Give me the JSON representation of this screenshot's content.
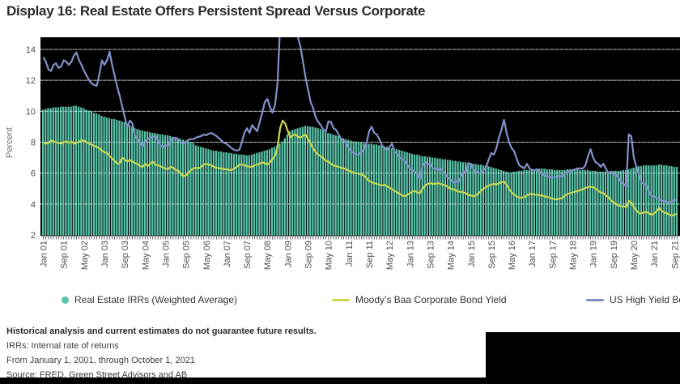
{
  "title": "Display 16: Real Estate Offers Persistent Spread Versus Corporate",
  "footnotes": {
    "line1": "Historical analysis and current estimates do not guarantee future results.",
    "line2": "IRRs: Internal rate of returns",
    "line3": "From January 1, 2001, through October 1, 2021",
    "line4": "Source: FRED, Green Street Advisors and AB"
  },
  "colors": {
    "bars": "#5AC4AB",
    "baa_line": "#CBD84F",
    "hy_line": "#8391C9",
    "plot_background": "#000000",
    "gridline": "#8a8a8a",
    "axis_text": "#4d4e50"
  },
  "chart_data": {
    "type": "bar",
    "subtype": "monthly bars with two overlaid line series",
    "title": "Display 16: Real Estate Offers Persistent Spread Versus Corporate",
    "xlabel": "",
    "ylabel": "Percent",
    "ylim": [
      2,
      14
    ],
    "y_ticks": [
      2,
      4,
      6,
      8,
      10,
      12,
      14
    ],
    "grid": true,
    "legend_position": "bottom",
    "x_unit": "month",
    "x_start": "Jan 2001",
    "x_end": "Oct 2021",
    "x_tick_labels": [
      "Jan 01",
      "Sep 01",
      "May 02",
      "Jan 03",
      "Sep 03",
      "May 04",
      "Jan 05",
      "Sep 05",
      "May 06",
      "Jan 07",
      "Sep 07",
      "May 08",
      "Jan 09",
      "Sep 09",
      "May 10",
      "Jan 11",
      "Sep 11",
      "May 12",
      "Jan 13",
      "Sep 13",
      "May 14",
      "Jan 15",
      "Sep 15",
      "May 16",
      "Jan 17",
      "Sep 17",
      "May 18",
      "Jan 19",
      "Sep 19",
      "May 20",
      "Jan 21",
      "Sep 21"
    ],
    "x_tick_every_n_months": 8,
    "series": [
      {
        "name": "Real Estate IRRs (Weighted Average)",
        "type": "bar",
        "color": "#5AC4AB",
        "values": [
          10.1,
          10.15,
          10.2,
          10.2,
          10.25,
          10.25,
          10.25,
          10.3,
          10.3,
          10.3,
          10.3,
          10.3,
          10.35,
          10.35,
          10.3,
          10.25,
          10.2,
          10.1,
          10.05,
          10.0,
          9.9,
          9.85,
          9.8,
          9.7,
          9.65,
          9.6,
          9.55,
          9.5,
          9.5,
          9.45,
          9.4,
          9.35,
          9.3,
          9.2,
          9.1,
          9.0,
          8.9,
          8.85,
          8.8,
          8.75,
          8.7,
          8.7,
          8.65,
          8.6,
          8.6,
          8.55,
          8.5,
          8.5,
          8.45,
          8.45,
          8.4,
          8.35,
          8.3,
          8.25,
          8.2,
          8.15,
          8.1,
          8.05,
          8.0,
          7.95,
          7.8,
          7.75,
          7.7,
          7.65,
          7.6,
          7.55,
          7.5,
          7.45,
          7.45,
          7.4,
          7.4,
          7.35,
          7.35,
          7.3,
          7.3,
          7.25,
          7.25,
          7.2,
          7.2,
          7.2,
          7.15,
          7.15,
          7.2,
          7.25,
          7.3,
          7.35,
          7.4,
          7.45,
          7.5,
          7.55,
          7.65,
          7.7,
          7.8,
          7.9,
          8.05,
          8.25,
          8.5,
          8.7,
          8.8,
          8.85,
          8.9,
          8.95,
          9.0,
          9.05,
          9.05,
          9.0,
          9.0,
          8.95,
          8.9,
          8.85,
          8.8,
          8.7,
          8.6,
          8.55,
          8.5,
          8.45,
          8.4,
          8.3,
          8.25,
          8.2,
          8.15,
          8.1,
          8.05,
          8.05,
          8.0,
          8.0,
          7.95,
          7.95,
          7.9,
          7.9,
          7.85,
          7.85,
          7.8,
          7.8,
          7.75,
          7.7,
          7.65,
          7.6,
          7.6,
          7.55,
          7.5,
          7.45,
          7.4,
          7.35,
          7.3,
          7.25,
          7.2,
          7.2,
          7.15,
          7.1,
          7.1,
          7.05,
          7.05,
          7.0,
          7.0,
          6.95,
          6.95,
          6.9,
          6.9,
          6.85,
          6.85,
          6.8,
          6.8,
          6.75,
          6.75,
          6.7,
          6.7,
          6.65,
          6.65,
          6.6,
          6.6,
          6.55,
          6.55,
          6.5,
          6.5,
          6.45,
          6.4,
          6.35,
          6.3,
          6.25,
          6.2,
          6.15,
          6.1,
          6.05,
          6.05,
          6.1,
          6.1,
          6.15,
          6.15,
          6.2,
          6.2,
          6.2,
          6.25,
          6.25,
          6.3,
          6.3,
          6.3,
          6.3,
          6.25,
          6.25,
          6.25,
          6.2,
          6.2,
          6.2,
          6.2,
          6.2,
          6.25,
          6.25,
          6.25,
          6.25,
          6.25,
          6.2,
          6.2,
          6.2,
          6.2,
          6.15,
          6.15,
          6.15,
          6.1,
          6.1,
          6.1,
          6.1,
          6.1,
          6.1,
          6.15,
          6.15,
          6.15,
          6.15,
          6.2,
          6.2,
          6.25,
          6.3,
          6.35,
          6.4,
          6.45,
          6.45,
          6.5,
          6.5,
          6.5,
          6.5,
          6.5,
          6.5,
          6.55,
          6.55,
          6.5,
          6.5,
          6.45,
          6.45,
          6.4,
          6.4
        ]
      },
      {
        "name": "Moody’s Baa Corporate Bond Yield",
        "type": "line",
        "color": "#CBD84F",
        "values": [
          7.95,
          7.9,
          7.95,
          8.1,
          8.05,
          8.0,
          7.95,
          7.9,
          8.0,
          8.05,
          7.95,
          8.05,
          7.9,
          7.95,
          8.05,
          8.1,
          8.1,
          8.0,
          7.9,
          7.85,
          7.75,
          7.7,
          7.6,
          7.45,
          7.35,
          7.3,
          7.1,
          6.95,
          6.8,
          6.6,
          6.65,
          7.0,
          6.85,
          6.75,
          6.85,
          6.75,
          6.65,
          6.6,
          6.45,
          6.4,
          6.6,
          6.45,
          6.6,
          6.75,
          6.55,
          6.5,
          6.45,
          6.35,
          6.3,
          6.25,
          6.4,
          6.35,
          6.2,
          6.15,
          5.95,
          5.8,
          5.85,
          6.0,
          6.2,
          6.3,
          6.35,
          6.3,
          6.4,
          6.55,
          6.6,
          6.55,
          6.5,
          6.4,
          6.35,
          6.3,
          6.3,
          6.25,
          6.25,
          6.2,
          6.2,
          6.3,
          6.4,
          6.55,
          6.55,
          6.5,
          6.45,
          6.4,
          6.4,
          6.5,
          6.55,
          6.6,
          6.7,
          6.65,
          6.55,
          6.7,
          6.9,
          7.1,
          7.65,
          8.9,
          9.4,
          9.2,
          8.75,
          8.3,
          8.45,
          8.5,
          8.35,
          8.3,
          8.4,
          8.5,
          8.2,
          7.9,
          7.6,
          7.35,
          7.2,
          7.1,
          6.95,
          6.8,
          6.75,
          6.6,
          6.5,
          6.45,
          6.4,
          6.35,
          6.3,
          6.25,
          6.15,
          6.1,
          6.0,
          6.0,
          5.95,
          5.9,
          5.85,
          5.65,
          5.5,
          5.4,
          5.35,
          5.3,
          5.25,
          5.2,
          5.25,
          5.15,
          5.05,
          4.95,
          4.85,
          4.75,
          4.65,
          4.55,
          4.5,
          4.6,
          4.7,
          4.8,
          4.85,
          4.75,
          4.7,
          5.0,
          5.2,
          5.3,
          5.35,
          5.3,
          5.3,
          5.35,
          5.3,
          5.25,
          5.2,
          5.1,
          5.0,
          4.95,
          4.9,
          4.8,
          4.8,
          4.75,
          4.7,
          4.6,
          4.55,
          4.5,
          4.55,
          4.7,
          4.85,
          5.0,
          5.1,
          5.2,
          5.25,
          5.3,
          5.25,
          5.35,
          5.4,
          5.45,
          5.25,
          4.95,
          4.75,
          4.6,
          4.5,
          4.4,
          4.4,
          4.45,
          4.55,
          4.65,
          4.65,
          4.6,
          4.6,
          4.55,
          4.55,
          4.5,
          4.45,
          4.4,
          4.35,
          4.3,
          4.3,
          4.35,
          4.4,
          4.55,
          4.65,
          4.7,
          4.75,
          4.8,
          4.85,
          4.9,
          4.95,
          5.05,
          5.1,
          5.1,
          5.1,
          5.0,
          4.85,
          4.75,
          4.7,
          4.55,
          4.45,
          4.25,
          4.1,
          4.0,
          3.9,
          3.85,
          3.85,
          3.8,
          4.2,
          4.1,
          3.8,
          3.6,
          3.4,
          3.4,
          3.45,
          3.5,
          3.4,
          3.3,
          3.4,
          3.55,
          3.75,
          3.55,
          3.45,
          3.4,
          3.3,
          3.25,
          3.3,
          3.4
        ]
      },
      {
        "name": "US High Yield Bonds",
        "type": "line",
        "color": "#8391C9",
        "values": [
          13.5,
          13.2,
          12.7,
          12.6,
          13.0,
          13.1,
          12.8,
          12.9,
          13.3,
          13.2,
          13.0,
          13.2,
          13.6,
          13.8,
          13.3,
          13.0,
          12.6,
          12.3,
          12.0,
          11.8,
          11.7,
          11.65,
          12.4,
          13.3,
          13.0,
          13.3,
          13.85,
          13.0,
          12.3,
          11.6,
          11.0,
          10.3,
          9.6,
          9.0,
          9.4,
          9.2,
          8.4,
          8.2,
          8.0,
          7.7,
          8.0,
          8.2,
          8.3,
          8.35,
          8.4,
          8.1,
          7.8,
          7.65,
          7.8,
          7.75,
          8.1,
          8.25,
          8.3,
          8.2,
          8.0,
          7.9,
          8.0,
          8.15,
          8.2,
          8.2,
          8.3,
          8.35,
          8.4,
          8.5,
          8.45,
          8.55,
          8.6,
          8.5,
          8.4,
          8.25,
          8.1,
          7.95,
          7.9,
          7.75,
          7.6,
          7.5,
          7.45,
          7.5,
          8.0,
          8.6,
          8.9,
          8.6,
          9.1,
          8.9,
          8.7,
          9.3,
          9.9,
          10.6,
          10.8,
          10.3,
          9.9,
          10.4,
          11.8,
          15.5,
          19.0,
          19.5,
          17.0,
          16.5,
          17.0,
          15.5,
          14.8,
          14.2,
          13.2,
          12.2,
          11.4,
          10.6,
          10.2,
          9.6,
          9.3,
          9.1,
          8.8,
          8.7,
          9.35,
          9.3,
          8.9,
          8.8,
          8.5,
          8.2,
          8.1,
          7.9,
          7.6,
          7.4,
          7.3,
          7.2,
          7.2,
          7.4,
          7.5,
          8.0,
          8.7,
          9.0,
          8.6,
          8.5,
          8.2,
          7.8,
          7.6,
          7.5,
          7.7,
          7.9,
          7.4,
          7.2,
          7.0,
          6.9,
          6.8,
          6.5,
          6.3,
          6.2,
          6.1,
          5.9,
          5.6,
          6.5,
          6.7,
          6.6,
          6.6,
          6.3,
          6.3,
          6.2,
          6.3,
          6.1,
          5.9,
          5.7,
          5.6,
          5.35,
          5.5,
          5.4,
          5.8,
          6.1,
          6.1,
          6.65,
          6.6,
          6.2,
          6.1,
          6.0,
          6.0,
          6.2,
          6.4,
          6.9,
          7.3,
          7.2,
          7.6,
          8.3,
          8.8,
          9.45,
          8.6,
          8.0,
          7.6,
          7.4,
          6.9,
          6.5,
          6.4,
          6.3,
          6.6,
          6.3,
          6.2,
          6.2,
          6.2,
          6.1,
          5.9,
          5.85,
          5.8,
          5.75,
          5.7,
          5.75,
          5.8,
          5.8,
          5.8,
          5.95,
          6.1,
          6.15,
          6.2,
          6.25,
          6.3,
          6.3,
          6.3,
          6.5,
          7.1,
          7.55,
          7.0,
          6.7,
          6.6,
          6.4,
          6.6,
          6.3,
          6.0,
          6.1,
          5.9,
          5.9,
          5.7,
          5.4,
          5.3,
          5.1,
          8.5,
          8.4,
          7.0,
          6.4,
          5.9,
          5.4,
          5.3,
          5.2,
          4.8,
          4.5,
          4.5,
          4.4,
          4.3,
          4.2,
          4.2,
          4.1,
          4.1,
          4.2,
          4.2,
          4.35
        ]
      }
    ]
  }
}
